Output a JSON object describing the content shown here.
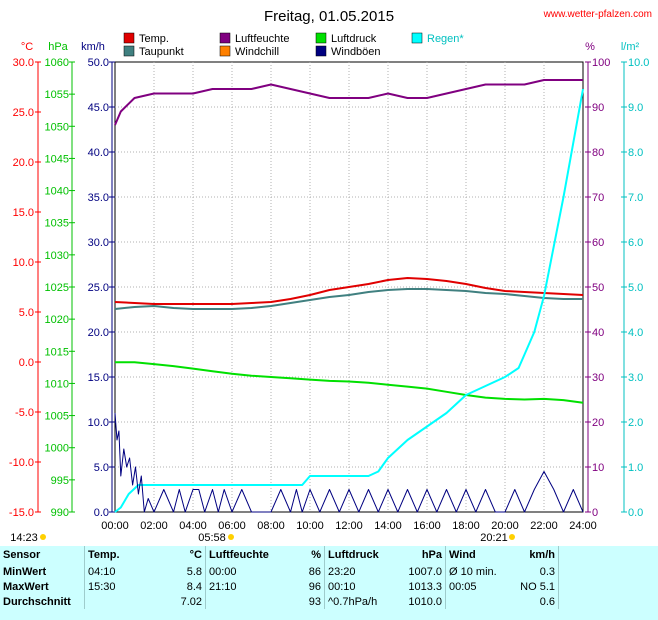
{
  "title": "Freitag, 01.05.2015",
  "source": "www.wetter-pfalzen.com",
  "axis_units": {
    "temp": "°C",
    "hpa": "hPa",
    "kmh": "km/h",
    "pct": "%",
    "rain": "l/m²"
  },
  "sun": {
    "rise_label": "05:58",
    "set_label": "20:21",
    "left_label": "14:23"
  },
  "colors": {
    "temp": "#e00000",
    "dew": "#408080",
    "humidity": "#800080",
    "windchill": "#ff8000",
    "pressure": "#00e000",
    "gusts": "#000080",
    "rain": "#00ffff",
    "grid": "#c0c0c0",
    "title_red": "#ff0000"
  },
  "chart_data": {
    "type": "line",
    "title": "Freitag, 01.05.2015",
    "xlabel": "",
    "x_ticks": [
      "00:00",
      "02:00",
      "04:00",
      "06:00",
      "08:00",
      "10:00",
      "12:00",
      "14:00",
      "16:00",
      "18:00",
      "20:00",
      "22:00",
      "24:00"
    ],
    "axes": {
      "temp_c": {
        "range": [
          -15,
          30
        ],
        "ticks": [
          "30.0",
          "25.0",
          "20.0",
          "15.0",
          "10.0",
          "5.0",
          "0.0",
          "-5.0",
          "-10.0",
          "-15.0"
        ]
      },
      "pressure_hpa": {
        "range": [
          990,
          1060
        ],
        "ticks": [
          "1060",
          "1055",
          "1050",
          "1045",
          "1040",
          "1035",
          "1030",
          "1025",
          "1020",
          "1015",
          "1010",
          "1005",
          "1000",
          "995",
          "990"
        ]
      },
      "wind_kmh": {
        "range": [
          0,
          50
        ],
        "ticks": [
          "50.0",
          "45.0",
          "40.0",
          "35.0",
          "30.0",
          "25.0",
          "20.0",
          "15.0",
          "10.0",
          "5.0",
          "0.0"
        ]
      },
      "humidity_pct": {
        "range": [
          0,
          100
        ],
        "ticks": [
          "100",
          "90",
          "80",
          "70",
          "60",
          "50",
          "40",
          "30",
          "20",
          "10",
          "0"
        ]
      },
      "rain_lm2": {
        "range": [
          0,
          10
        ],
        "ticks": [
          "10.0",
          "9.0",
          "8.0",
          "7.0",
          "6.0",
          "5.0",
          "4.0",
          "3.0",
          "2.0",
          "1.0",
          "0.0"
        ]
      }
    },
    "legend": [
      {
        "name": "Temp.",
        "color": "#e00000"
      },
      {
        "name": "Luftfeuchte",
        "color": "#800080"
      },
      {
        "name": "Luftdruck",
        "color": "#00e000"
      },
      {
        "name": "Regen*",
        "color": "#00ffff"
      },
      {
        "name": "Taupunkt",
        "color": "#408080"
      },
      {
        "name": "Windchill",
        "color": "#ff8000"
      },
      {
        "name": "Windböen",
        "color": "#000080"
      }
    ],
    "series": [
      {
        "name": "Temp.",
        "axis": "temp_c",
        "color": "#e00000",
        "x": [
          0,
          1,
          2,
          3,
          4,
          5,
          6,
          7,
          8,
          9,
          10,
          11,
          12,
          13,
          14,
          15,
          16,
          17,
          18,
          19,
          20,
          21,
          22,
          23,
          24
        ],
        "y": [
          6.0,
          5.9,
          5.8,
          5.8,
          5.8,
          5.8,
          5.8,
          5.9,
          6.0,
          6.3,
          6.7,
          7.2,
          7.5,
          7.8,
          8.2,
          8.4,
          8.3,
          8.1,
          7.8,
          7.4,
          7.1,
          7.0,
          6.9,
          6.8,
          6.7
        ]
      },
      {
        "name": "Taupunkt",
        "axis": "temp_c",
        "color": "#408080",
        "x": [
          0,
          1,
          2,
          3,
          4,
          5,
          6,
          7,
          8,
          9,
          10,
          11,
          12,
          13,
          14,
          15,
          16,
          17,
          18,
          19,
          20,
          21,
          22,
          23,
          24
        ],
        "y": [
          5.3,
          5.5,
          5.6,
          5.4,
          5.3,
          5.3,
          5.3,
          5.4,
          5.6,
          5.9,
          6.2,
          6.5,
          6.7,
          7.0,
          7.2,
          7.3,
          7.3,
          7.2,
          7.1,
          6.9,
          6.8,
          6.6,
          6.4,
          6.3,
          6.3
        ]
      },
      {
        "name": "Luftfeuchte",
        "axis": "humidity_pct",
        "color": "#800080",
        "x": [
          0,
          0.3,
          1,
          2,
          3,
          4,
          5,
          6,
          7,
          8,
          9,
          10,
          11,
          12,
          13,
          14,
          15,
          16,
          17,
          18,
          19,
          20,
          21,
          22,
          23,
          24
        ],
        "y": [
          86,
          89,
          92,
          93,
          93,
          93,
          94,
          94,
          94,
          95,
          94,
          93,
          92,
          92,
          92,
          93,
          92,
          92,
          93,
          94,
          95,
          95,
          95,
          96,
          96,
          96
        ]
      },
      {
        "name": "Luftdruck",
        "axis": "pressure_hpa",
        "color": "#00e000",
        "x": [
          0,
          1,
          2,
          3,
          4,
          5,
          6,
          7,
          8,
          9,
          10,
          11,
          12,
          13,
          14,
          15,
          16,
          17,
          18,
          19,
          20,
          21,
          22,
          23,
          24
        ],
        "y": [
          1013.3,
          1013.3,
          1013.0,
          1012.7,
          1012.3,
          1011.9,
          1011.5,
          1011.2,
          1011.0,
          1010.8,
          1010.6,
          1010.4,
          1010.3,
          1010.1,
          1009.8,
          1009.5,
          1009.2,
          1008.7,
          1008.2,
          1007.8,
          1007.6,
          1007.5,
          1007.6,
          1007.4,
          1007.0
        ]
      },
      {
        "name": "Regen*",
        "axis": "rain_lm2",
        "color": "#00ffff",
        "x": [
          0,
          0.3,
          0.7,
          1.2,
          2,
          3,
          4,
          5,
          6,
          7,
          8,
          9,
          9.6,
          10,
          11,
          12,
          13,
          13.5,
          14,
          15,
          16,
          17,
          18,
          19,
          20,
          20.7,
          21,
          21.5,
          22,
          23,
          24
        ],
        "y": [
          0,
          0.1,
          0.4,
          0.6,
          0.6,
          0.6,
          0.6,
          0.6,
          0.6,
          0.6,
          0.6,
          0.6,
          0.6,
          0.8,
          0.8,
          0.8,
          0.8,
          0.9,
          1.2,
          1.6,
          1.9,
          2.2,
          2.6,
          2.8,
          3.0,
          3.2,
          3.5,
          4.0,
          4.8,
          7.0,
          9.4
        ]
      },
      {
        "name": "Windböen",
        "axis": "wind_kmh",
        "color": "#000080",
        "x": [
          0,
          0.1,
          0.2,
          0.3,
          0.45,
          0.6,
          0.75,
          0.9,
          1.05,
          1.2,
          1.35,
          1.5,
          1.7,
          2,
          2.5,
          3,
          3.3,
          3.6,
          4,
          4.3,
          4.6,
          5,
          5.3,
          5.6,
          6,
          6.5,
          7,
          7.5,
          8,
          8.5,
          9,
          9.3,
          9.6,
          10,
          10.5,
          11,
          11.5,
          12,
          12.5,
          13,
          13.5,
          14,
          14.5,
          15,
          15.5,
          16,
          16.5,
          17,
          17.5,
          18,
          18.5,
          19,
          19.5,
          20,
          20.5,
          21,
          21.5,
          22,
          22.5,
          23,
          23.5,
          24
        ],
        "y": [
          11,
          8,
          9,
          4,
          7,
          5,
          6,
          3,
          5,
          2,
          4,
          0,
          1.5,
          0,
          2.5,
          0,
          2.5,
          0,
          2.5,
          2.5,
          0,
          2.5,
          0,
          2.5,
          0,
          2.5,
          0,
          0,
          0,
          2.5,
          0,
          2.5,
          0,
          2.5,
          0,
          2.5,
          0,
          2.5,
          0,
          2.5,
          0,
          2.5,
          0,
          2.5,
          0,
          2.5,
          0,
          2.5,
          0,
          2.5,
          0,
          2.5,
          0,
          0,
          2.5,
          0,
          2.5,
          4.5,
          2.5,
          0,
          2.5,
          0
        ]
      }
    ]
  },
  "stats": {
    "headers": [
      "Sensor",
      "Temp.",
      "°C",
      "Luftfeuchte",
      "%",
      "Luftdruck",
      "hPa",
      "Wind",
      "km/h"
    ],
    "rows": [
      {
        "label": "MinWert",
        "t_time": "04:10",
        "t_val": "5.8",
        "h_time": "00:00",
        "h_val": "86",
        "p_time": "23:20",
        "p_val": "1007.0",
        "w_label": "Ø 10 min.",
        "w_val": "0.3"
      },
      {
        "label": "MaxWert",
        "t_time": "15:30",
        "t_val": "8.4",
        "h_time": "21:10",
        "h_val": "96",
        "p_time": "00:10",
        "p_val": "1013.3",
        "w_label": "00:05",
        "w_val": "NO 5.1"
      },
      {
        "label": "Durchschnitt",
        "t_time": "",
        "t_val": "7.02",
        "h_time": "",
        "h_val": "93",
        "p_time": "^0.7hPa/h",
        "p_val": "1010.0",
        "w_label": "",
        "w_val": "0.6"
      }
    ]
  }
}
